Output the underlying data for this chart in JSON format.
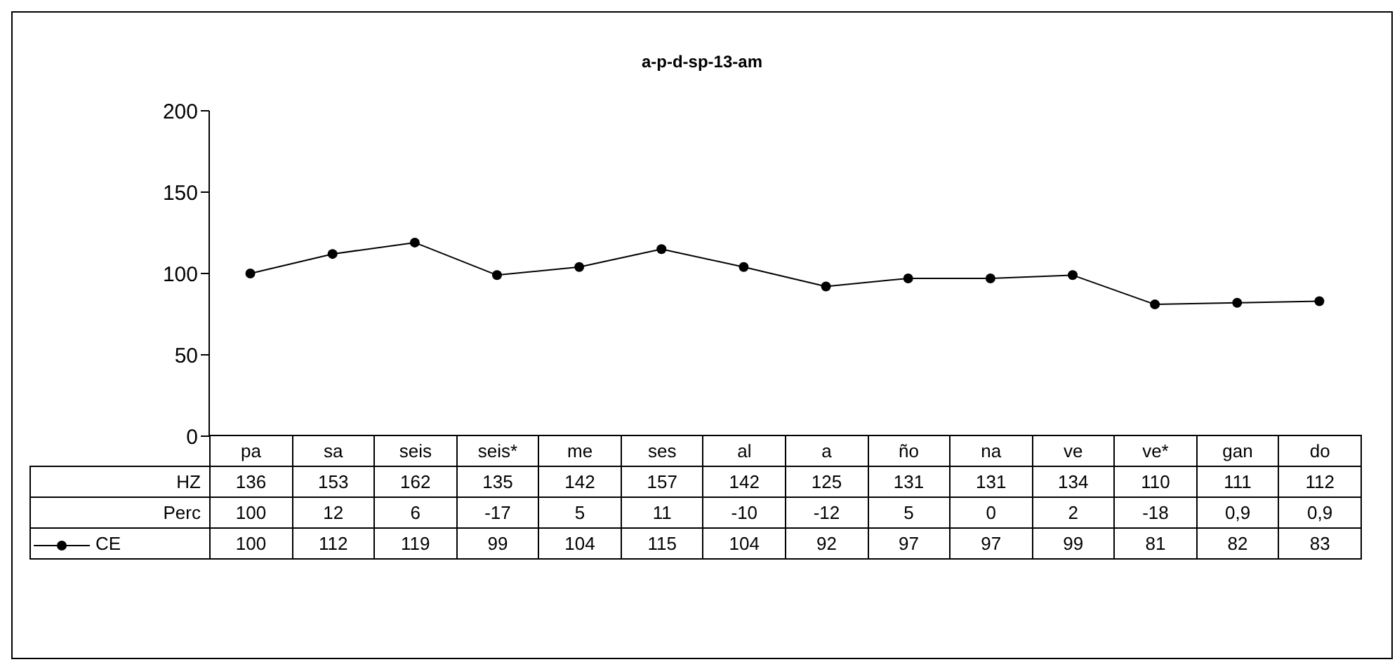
{
  "chart_data": {
    "type": "line",
    "title": "a-p-d-sp-13-am",
    "categories": [
      "pa",
      "sa",
      "seis",
      "seis*",
      "me",
      "ses",
      "al",
      "a",
      "ño",
      "na",
      "ve",
      "ve*",
      "gan",
      "do"
    ],
    "series": [
      {
        "name": "HZ",
        "type": "other",
        "values": [
          null,
          null,
          null,
          null,
          null,
          null,
          null,
          null,
          null,
          null,
          null,
          null,
          null,
          null
        ],
        "value_labels": [
          "136",
          "153",
          "162",
          "135",
          "142",
          "157",
          "142",
          "125",
          "131",
          "131",
          "134",
          "110",
          "111",
          "112"
        ]
      },
      {
        "name": "Perc",
        "type": "other",
        "values": [
          null,
          null,
          null,
          null,
          null,
          null,
          null,
          null,
          null,
          null,
          null,
          null,
          null,
          null
        ],
        "value_labels": [
          "100",
          "12",
          "6",
          "-17",
          "5",
          "11",
          "-10",
          "-12",
          "5",
          "0",
          "2",
          "-18",
          "0,9",
          "0,9"
        ]
      },
      {
        "name": "CE",
        "color": "#000000",
        "values": [
          100,
          112,
          119,
          99,
          104,
          115,
          104,
          92,
          97,
          97,
          99,
          81,
          82,
          83
        ]
      }
    ],
    "ylim": [
      0,
      200
    ],
    "yticks": [
      0,
      50,
      100,
      150,
      200
    ],
    "grid": false,
    "legend": "bottom",
    "marker": "circle",
    "line_style": "solid",
    "data_labels": true
  }
}
